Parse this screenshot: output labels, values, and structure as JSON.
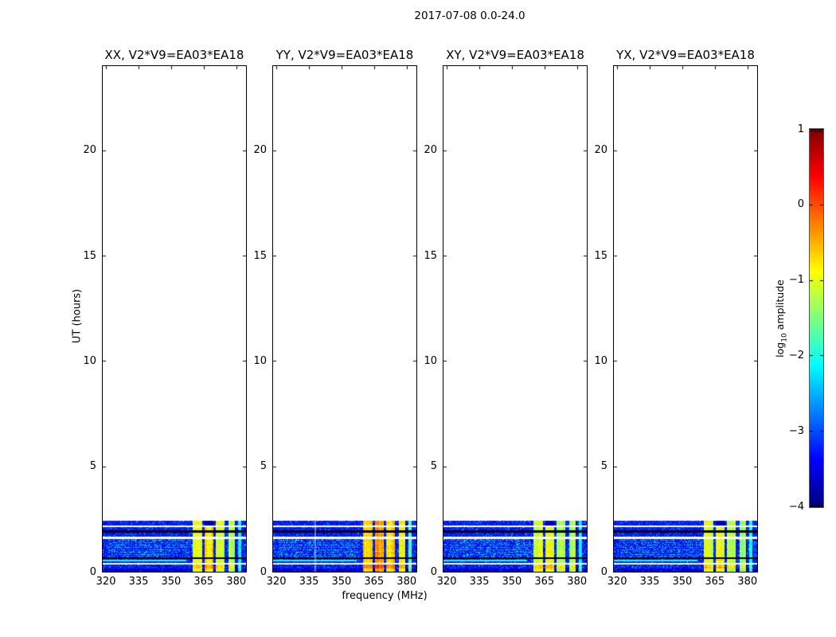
{
  "figure": {
    "title": "2017-07-08 0.0-24.0",
    "background": "#ffffff"
  },
  "axes": {
    "xlabel": "frequency (MHz)",
    "ylabel": "UT (hours)",
    "x_tick_labels": [
      "320",
      "335",
      "350",
      "365",
      "380"
    ],
    "x_tick_values": [
      320,
      335,
      350,
      365,
      380
    ],
    "y_tick_labels": [
      "0",
      "5",
      "10",
      "15",
      "20"
    ],
    "y_tick_values": [
      0,
      5,
      10,
      15,
      20
    ],
    "x_range_mhz": [
      318.5,
      384.5
    ],
    "y_range_hours": [
      0,
      24
    ]
  },
  "colorbar": {
    "label_pre": "log",
    "label_sub": "10",
    "label_post": " amplitude",
    "tick_labels": [
      "1",
      "0",
      "−1",
      "−2",
      "−3",
      "−4"
    ],
    "tick_values": [
      1,
      0,
      -1,
      -2,
      -3,
      -4
    ],
    "vmin": -4,
    "vmax": 1,
    "colormap": "jet"
  },
  "chart_data": {
    "type": "heatmap",
    "title": "2017-07-08 0.0-24.0",
    "xlabel": "frequency (MHz)",
    "ylabel": "UT (hours)",
    "x_range_mhz": [
      318.5,
      384.5
    ],
    "y_range_hours": [
      0,
      24
    ],
    "grid": false,
    "colorbar_range_log10": [
      -4,
      1
    ],
    "data_time_extent_hours": [
      0,
      2.45
    ],
    "noise_floor_log10": -3.3,
    "panels": [
      {
        "title": "XX, V2*V9=EA03*EA18",
        "band_boost": 0.0,
        "flag_top_black": true,
        "white_col_mhz": null,
        "seed": 101
      },
      {
        "title": "YY, V2*V9=EA03*EA18",
        "band_boost": 0.35,
        "flag_top_black": false,
        "white_col_mhz": 337.8,
        "seed": 202
      },
      {
        "title": "XY, V2*V9=EA03*EA18",
        "band_boost": -0.2,
        "flag_top_black": true,
        "white_col_mhz": null,
        "seed": 303
      },
      {
        "title": "YX, V2*V9=EA03*EA18",
        "band_boost": -0.15,
        "flag_top_black": true,
        "white_col_mhz": null,
        "seed": 404
      }
    ],
    "time_segments": [
      [
        0.0,
        0.17,
        "noise-dim"
      ],
      [
        0.17,
        0.37,
        "noise-blobs"
      ],
      [
        0.37,
        0.445,
        "gap"
      ],
      [
        0.445,
        0.605,
        "noise-streak"
      ],
      [
        0.605,
        0.69,
        "black"
      ],
      [
        0.69,
        1.585,
        "noise-textured"
      ],
      [
        1.585,
        1.7,
        "gap"
      ],
      [
        1.7,
        1.885,
        "noise"
      ],
      [
        1.885,
        1.99,
        "black"
      ],
      [
        1.99,
        2.125,
        "noise"
      ],
      [
        2.125,
        2.21,
        "gap"
      ],
      [
        2.21,
        2.45,
        "noise"
      ]
    ],
    "rfi_bands_mhz": [
      {
        "f0": 359.6,
        "f1": 364.2,
        "v": -0.95
      },
      {
        "f0": 365.2,
        "f1": 369.4,
        "v": -0.8
      },
      {
        "f0": 370.4,
        "f1": 374.4,
        "v": -1.15
      },
      {
        "f0": 376.4,
        "f1": 379.6,
        "v": -1.25
      },
      {
        "f0": 380.6,
        "f1": 382.3,
        "v": -2.1
      }
    ],
    "dark_channels_mhz": [
      364.7,
      369.9,
      375.0,
      379.9
    ],
    "streak": {
      "t": 0.55,
      "f_max": 357,
      "v": -2.05
    },
    "flag_top_band_index": 1
  }
}
